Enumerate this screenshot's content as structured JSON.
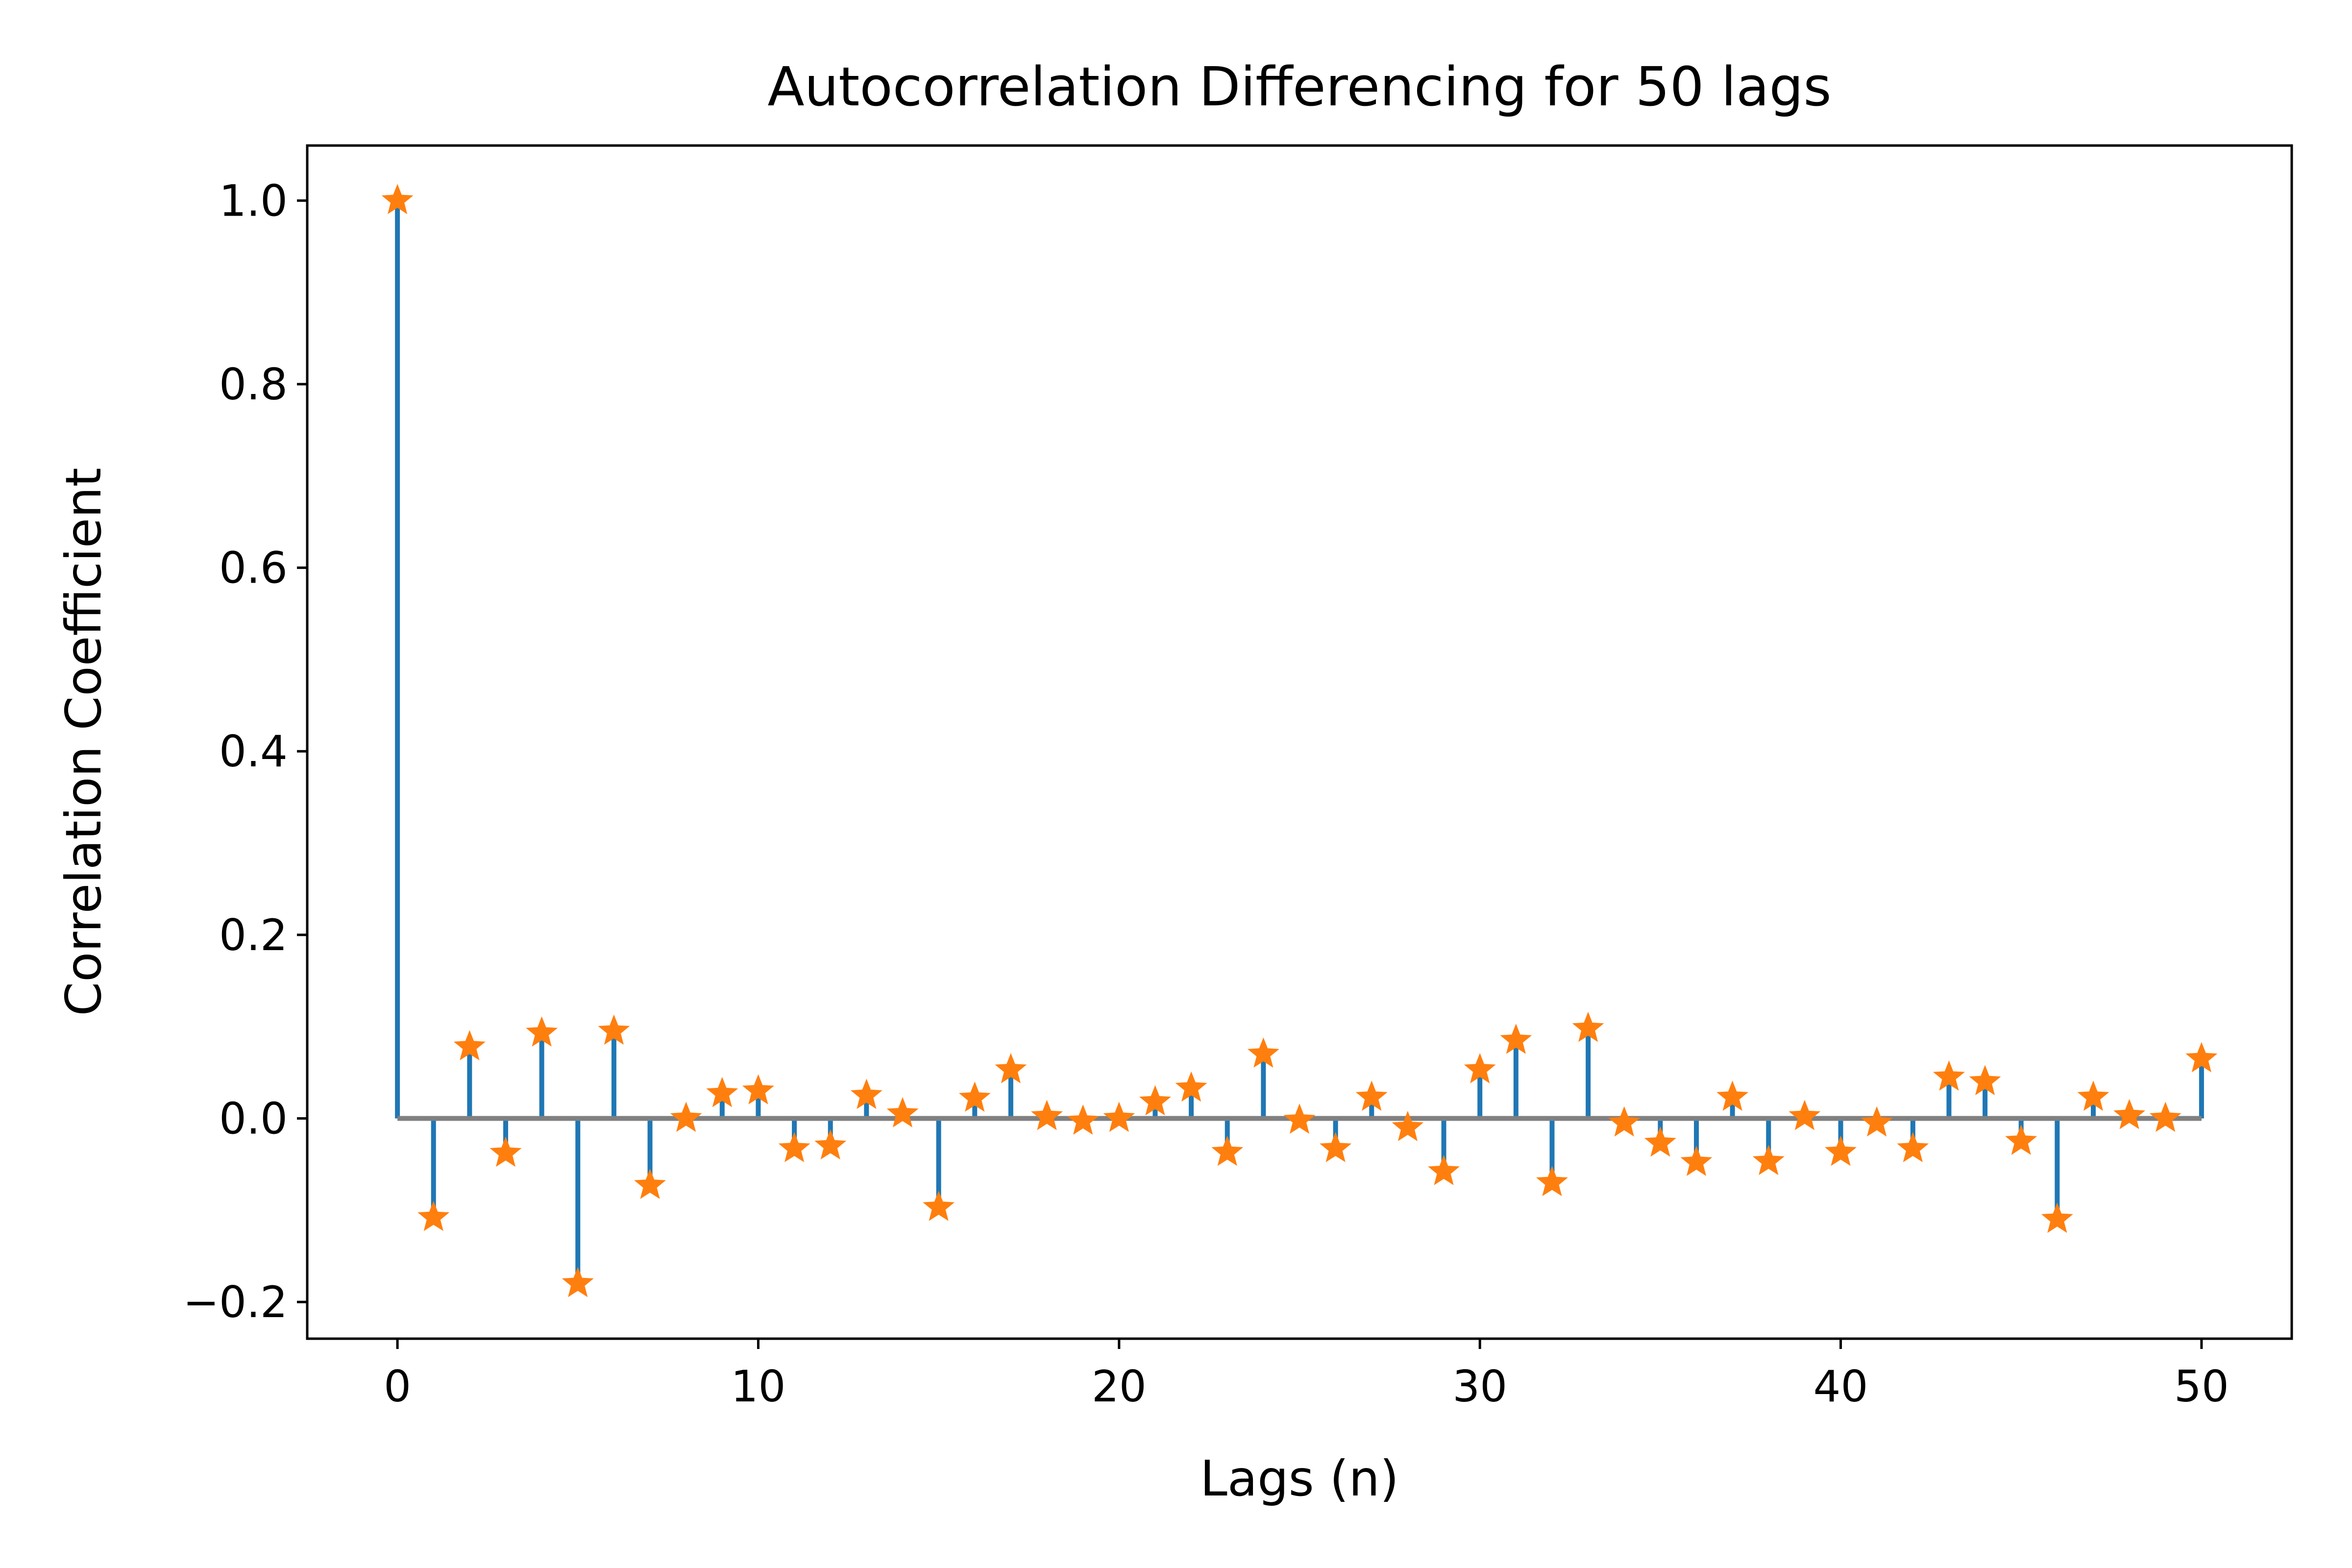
{
  "chart_data": {
    "type": "stem",
    "title": "Autocorrelation Differencing for 50 lags",
    "xlabel": "Lags (n)",
    "ylabel": "Correlation Coefficient",
    "xlim": [
      -2.5,
      52.5
    ],
    "ylim": [
      -0.24,
      1.06
    ],
    "x_ticks": [
      0,
      10,
      20,
      30,
      40,
      50
    ],
    "x_tick_labels": [
      "0",
      "10",
      "20",
      "30",
      "40",
      "50"
    ],
    "y_ticks": [
      -0.2,
      0.0,
      0.2,
      0.4,
      0.6,
      0.8,
      1.0
    ],
    "y_tick_labels": [
      "−0.2",
      "0.0",
      "0.2",
      "0.4",
      "0.6",
      "0.8",
      "1.0"
    ],
    "grid": false,
    "baseline": 0,
    "marker": "star",
    "colors": {
      "stem": "#1f77b4",
      "marker": "#ff7f0e",
      "baseline": "#808080"
    },
    "x": [
      0,
      1,
      2,
      3,
      4,
      5,
      6,
      7,
      8,
      9,
      10,
      11,
      12,
      13,
      14,
      15,
      16,
      17,
      18,
      19,
      20,
      21,
      22,
      23,
      24,
      25,
      26,
      27,
      28,
      29,
      30,
      31,
      32,
      33,
      34,
      35,
      36,
      37,
      38,
      39,
      40,
      41,
      42,
      43,
      44,
      45,
      46,
      47,
      48,
      49,
      50
    ],
    "values": [
      1.0,
      -0.108,
      0.078,
      -0.038,
      0.093,
      -0.18,
      0.095,
      -0.073,
      0.0,
      0.027,
      0.03,
      -0.033,
      -0.03,
      0.025,
      0.005,
      -0.097,
      0.022,
      0.053,
      0.002,
      -0.003,
      0.0,
      0.018,
      0.033,
      -0.037,
      0.07,
      -0.002,
      -0.033,
      0.023,
      -0.01,
      -0.058,
      0.053,
      0.085,
      -0.07,
      0.098,
      -0.005,
      -0.027,
      -0.048,
      0.023,
      -0.047,
      0.002,
      -0.037,
      -0.005,
      -0.033,
      0.045,
      0.04,
      -0.025,
      -0.11,
      0.023,
      0.003,
      0.0,
      0.065
    ]
  }
}
